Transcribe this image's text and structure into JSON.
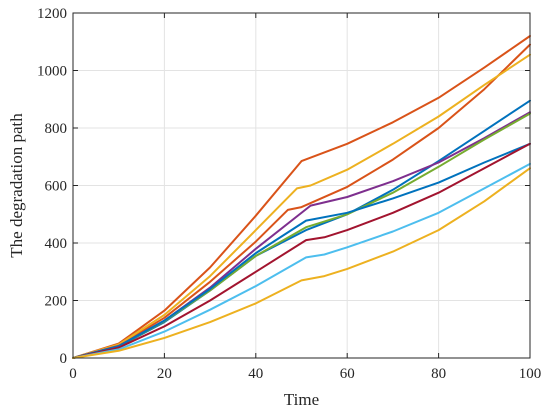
{
  "chart_data": {
    "type": "line",
    "title": "",
    "xlabel": "Time",
    "ylabel": "The degradation path",
    "xlim": [
      0,
      100
    ],
    "ylim": [
      0,
      1200
    ],
    "xticks": [
      0,
      20,
      40,
      60,
      80,
      100
    ],
    "yticks": [
      0,
      200,
      400,
      600,
      800,
      1000,
      1200
    ],
    "grid": true,
    "legend": "none",
    "series": [
      {
        "color": "#D95319",
        "x": [
          0,
          10,
          20,
          30,
          40,
          50,
          60,
          70,
          80,
          90,
          100
        ],
        "y": [
          0,
          50,
          165,
          315,
          495,
          685,
          745,
          820,
          905,
          1010,
          1120
        ]
      },
      {
        "color": "#D95319",
        "x": [
          0,
          10,
          20,
          30,
          40,
          47,
          50,
          60,
          70,
          80,
          90,
          100
        ],
        "y": [
          0,
          45,
          140,
          265,
          405,
          515,
          525,
          595,
          690,
          800,
          935,
          1090
        ]
      },
      {
        "color": "#EDB120",
        "x": [
          0,
          10,
          20,
          30,
          40,
          49,
          52,
          60,
          70,
          80,
          90,
          100
        ],
        "y": [
          0,
          47,
          150,
          285,
          445,
          590,
          600,
          655,
          745,
          840,
          950,
          1055
        ]
      },
      {
        "color": "#0072BD",
        "x": [
          0,
          10,
          20,
          30,
          40,
          51,
          60,
          70,
          80,
          90,
          100
        ],
        "y": [
          0,
          40,
          125,
          235,
          355,
          445,
          500,
          585,
          685,
          790,
          895
        ]
      },
      {
        "color": "#7E2F8E",
        "x": [
          0,
          10,
          20,
          30,
          40,
          52,
          60,
          70,
          80,
          90,
          100
        ],
        "y": [
          0,
          42,
          130,
          245,
          380,
          530,
          560,
          615,
          680,
          765,
          855
        ]
      },
      {
        "color": "#77AC30",
        "x": [
          0,
          10,
          20,
          30,
          40,
          51,
          54,
          60,
          70,
          80,
          90,
          100
        ],
        "y": [
          0,
          40,
          128,
          235,
          355,
          455,
          470,
          500,
          575,
          665,
          760,
          850
        ]
      },
      {
        "color": "#0072BD",
        "x": [
          0,
          10,
          20,
          30,
          40,
          51,
          60,
          70,
          80,
          90,
          100
        ],
        "y": [
          0,
          41,
          130,
          240,
          365,
          478,
          505,
          555,
          610,
          680,
          745
        ]
      },
      {
        "color": "#A2142F",
        "x": [
          0,
          10,
          20,
          30,
          40,
          51,
          55,
          60,
          70,
          80,
          90,
          100
        ],
        "y": [
          0,
          36,
          110,
          200,
          300,
          410,
          420,
          445,
          505,
          575,
          660,
          745
        ]
      },
      {
        "color": "#4DBEEE",
        "x": [
          0,
          10,
          20,
          30,
          40,
          51,
          55,
          60,
          70,
          80,
          90,
          100
        ],
        "y": [
          0,
          30,
          92,
          168,
          250,
          350,
          360,
          385,
          440,
          505,
          590,
          675
        ]
      },
      {
        "color": "#EDB120",
        "x": [
          0,
          10,
          20,
          30,
          40,
          50,
          55,
          60,
          70,
          80,
          90,
          100
        ],
        "y": [
          0,
          25,
          70,
          125,
          190,
          270,
          285,
          310,
          370,
          445,
          545,
          660
        ]
      }
    ]
  }
}
